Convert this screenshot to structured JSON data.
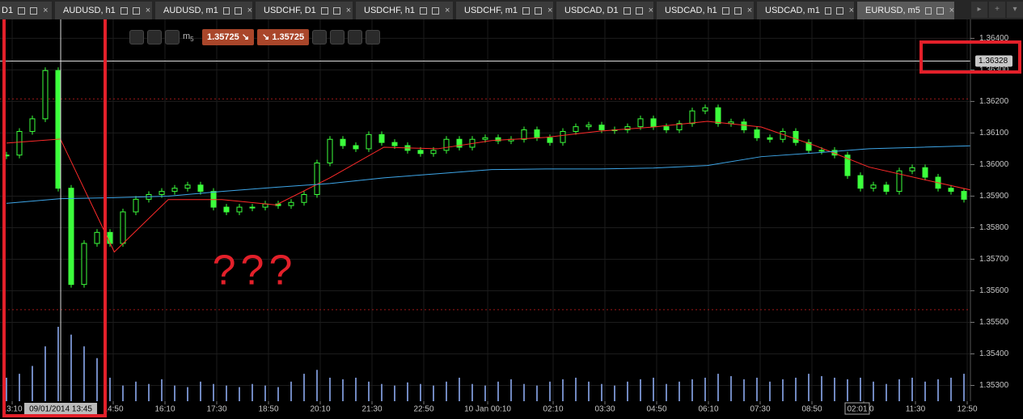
{
  "tabs": [
    "D1",
    "AUDUSD, h1",
    "AUDUSD, m1",
    "USDCHF, D1",
    "USDCHF, h1",
    "USDCHF, m1",
    "USDCAD, D1",
    "USDCAD, h1",
    "USDCAD, m1",
    "EURUSD, m5"
  ],
  "toolbar": {
    "timeframe": "m",
    "timeframe_sub": "5",
    "sell_price": "1.35725",
    "buy_price": "1.35725"
  },
  "annotation": "???",
  "chart_data": {
    "type": "candlestick",
    "color": "#3cff3c",
    "closes": [
      1.3603,
      1.36105,
      1.36145,
      1.36298,
      1.35925,
      1.3562,
      1.3575,
      1.35785,
      1.3575,
      1.3585,
      1.3589,
      1.35905,
      1.35915,
      1.35925,
      1.35935,
      1.35915,
      1.35865,
      1.3585,
      1.35865,
      1.35865,
      1.35875,
      1.3587,
      1.3588,
      1.35905,
      1.36005,
      1.3608,
      1.3606,
      1.3605,
      1.36095,
      1.3607,
      1.3606,
      1.36045,
      1.36035,
      1.36045,
      1.3608,
      1.36055,
      1.3608,
      1.36085,
      1.36075,
      1.3608,
      1.3611,
      1.36085,
      1.3607,
      1.36105,
      1.3612,
      1.36125,
      1.3611,
      1.3611,
      1.3612,
      1.36145,
      1.3612,
      1.3611,
      1.3613,
      1.3617,
      1.3618,
      1.3613,
      1.36135,
      1.3611,
      1.36085,
      1.3608,
      1.36105,
      1.3607,
      1.36045,
      1.36045,
      1.3603,
      1.35965,
      1.35925,
      1.35935,
      1.35915,
      1.3598,
      1.3599,
      1.3596,
      1.35925,
      1.35915,
      1.3589,
      1.35865
    ],
    "moving_averages": [
      {
        "color": "#ff2a2a",
        "values": [
          1.36068,
          1.36081,
          1.35723,
          1.35889,
          1.35889,
          1.35872,
          1.35958,
          1.36055,
          1.3605,
          1.36076,
          1.36086,
          1.36106,
          1.36119,
          1.36137,
          1.36119,
          1.3606,
          1.35992,
          1.35953,
          1.35915
        ]
      },
      {
        "color": "#3ea6e8",
        "values": [
          1.35877,
          1.35892,
          1.35895,
          1.359,
          1.35915,
          1.35928,
          1.3594,
          1.35958,
          1.35971,
          1.35984,
          1.35986,
          1.35986,
          1.35989,
          1.35997,
          1.36025,
          1.36037,
          1.3605,
          1.36055,
          1.3606
        ]
      }
    ],
    "volume_color": "#7088c0",
    "volume": [
      30,
      35,
      45,
      70,
      95,
      85,
      70,
      55,
      30,
      20,
      25,
      22,
      28,
      20,
      18,
      25,
      22,
      20,
      18,
      22,
      20,
      18,
      25,
      35,
      40,
      30,
      28,
      30,
      25,
      22,
      20,
      24,
      22,
      20,
      25,
      30,
      22,
      20,
      25,
      28,
      22,
      20,
      25,
      28,
      30,
      25,
      22,
      20,
      25,
      28,
      30,
      22,
      25,
      28,
      30,
      35,
      32,
      28,
      30,
      25,
      28,
      30,
      35,
      32,
      30,
      28,
      30,
      25,
      22,
      28,
      30,
      25,
      28,
      30,
      35,
      38
    ],
    "xlim": [
      -0.5,
      74.5
    ],
    "ylim": [
      1.3525,
      1.3646
    ],
    "yticks": [
      {
        "value": 1.364,
        "label": "1.36400"
      },
      {
        "value": 1.363,
        "label": "1.36300"
      },
      {
        "value": 1.362,
        "label": "1.36200"
      },
      {
        "value": 1.361,
        "label": "1.36100"
      },
      {
        "value": 1.36,
        "label": "1.36000"
      },
      {
        "value": 1.359,
        "label": "1.35900"
      },
      {
        "value": 1.358,
        "label": "1.35800"
      },
      {
        "value": 1.357,
        "label": "1.35700"
      },
      {
        "value": 1.356,
        "label": "1.35600"
      },
      {
        "value": 1.355,
        "label": "1.35500"
      },
      {
        "value": 1.354,
        "label": "1.35400"
      },
      {
        "value": 1.353,
        "label": "1.35300"
      }
    ],
    "xticks": [
      {
        "value": 0.44,
        "label": "13:10"
      },
      {
        "value": 8.25,
        "label": "14:50"
      },
      {
        "value": 12.25,
        "label": "16:10"
      },
      {
        "value": 16.25,
        "label": "17:30"
      },
      {
        "value": 20.25,
        "label": "18:50"
      },
      {
        "value": 24.25,
        "label": "20:10"
      },
      {
        "value": 28.25,
        "label": "21:30"
      },
      {
        "value": 32.25,
        "label": "22:50"
      },
      {
        "value": 37.19,
        "label": "10 Jan 00:10"
      },
      {
        "value": 42.25,
        "label": "02:10"
      },
      {
        "value": 46.25,
        "label": "03:30"
      },
      {
        "value": 50.25,
        "label": "04:50"
      },
      {
        "value": 54.25,
        "label": "06:10"
      },
      {
        "value": 58.25,
        "label": "07:30"
      },
      {
        "value": 62.25,
        "label": "08:50"
      },
      {
        "value": 66.25,
        "label": "10:10"
      },
      {
        "value": 70.25,
        "label": "11:30"
      },
      {
        "value": 74.25,
        "label": "12:50"
      }
    ],
    "current_price": 1.36328,
    "levels": [
      1.36208,
      1.3554
    ],
    "crosshair": {
      "value": 4.19,
      "label": "09/01/2014 13:45"
    },
    "cursor": {
      "value": 65.75,
      "label": "02:01"
    }
  }
}
